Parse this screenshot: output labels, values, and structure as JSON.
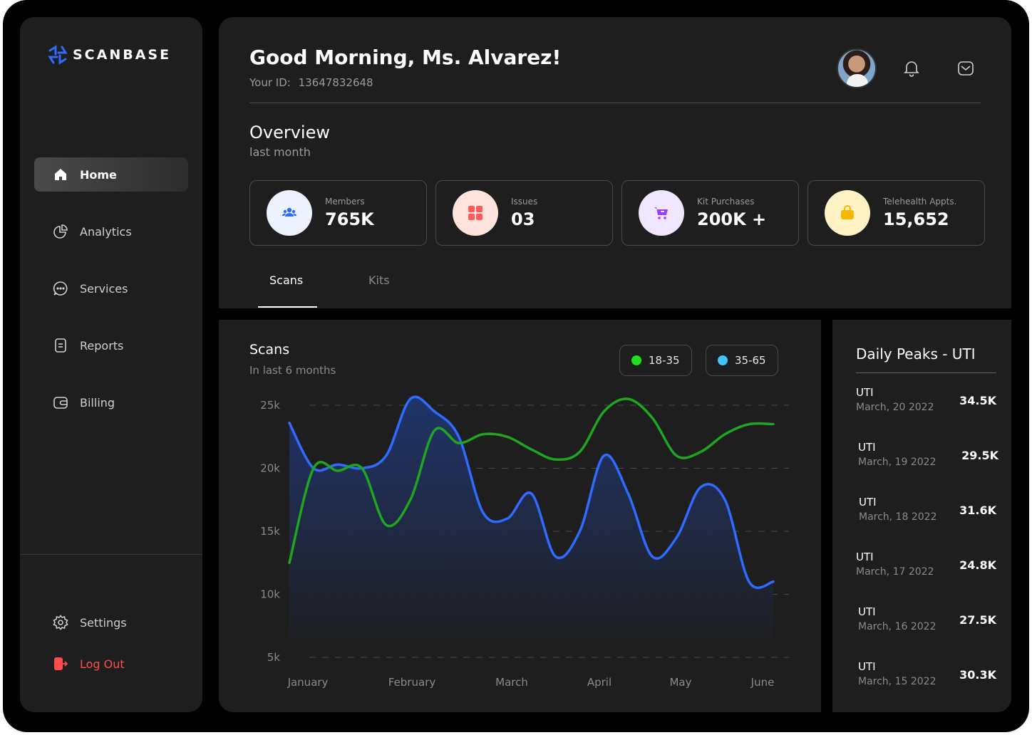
{
  "brand": {
    "name": "SCANBASE",
    "logo_color": "#2f6bff"
  },
  "sidebar": {
    "items": [
      {
        "label": "Home",
        "icon": "home-icon",
        "active": true
      },
      {
        "label": "Analytics",
        "icon": "pie-chart-icon"
      },
      {
        "label": "Services",
        "icon": "chat-bubble-icon"
      },
      {
        "label": "Reports",
        "icon": "document-icon"
      },
      {
        "label": "Billing",
        "icon": "wallet-icon"
      }
    ],
    "settings_label": "Settings",
    "logout_label": "Log Out",
    "logout_color": "#ff4d4d"
  },
  "header": {
    "greeting": "Good Morning, Ms. Alvarez!",
    "id_label": "Your ID:",
    "id_value": "13647832648",
    "icons": [
      "avatar",
      "bell-icon",
      "mail-icon"
    ]
  },
  "overview": {
    "title": "Overview",
    "subtitle": "last month",
    "stats": [
      {
        "label": "Members",
        "value": "765K",
        "icon": "users-icon",
        "bg": "#eef2ff",
        "fg": "#2f6bff"
      },
      {
        "label": "Issues",
        "value": "03",
        "icon": "grid-icon",
        "bg": "#ffe4de",
        "fg": "#ff5a5a"
      },
      {
        "label": "Kit Purchases",
        "value": "200K +",
        "icon": "cart-icon",
        "bg": "#f1e6ff",
        "fg": "#9b3dff"
      },
      {
        "label": "Telehealth Appts.",
        "value": "15,652",
        "icon": "bag-icon",
        "bg": "#fff2c4",
        "fg": "#f5b800"
      }
    ]
  },
  "tabs": [
    {
      "label": "Scans",
      "active": true
    },
    {
      "label": "Kits",
      "active": false
    }
  ],
  "chart": {
    "title": "Scans",
    "subtitle": "In last 6 months",
    "legend": [
      {
        "label": "18-35",
        "color": "#1fe01f"
      },
      {
        "label": "35-65",
        "color": "#3fc4ff"
      }
    ]
  },
  "chart_data": {
    "type": "line",
    "categories": [
      "January",
      "February",
      "March",
      "April",
      "May",
      "June"
    ],
    "y_tick_labels": [
      "25k",
      "20k",
      "15k",
      "10k",
      "5k"
    ],
    "ylim": [
      5000,
      25000
    ],
    "grid": true,
    "legend_position": "top-right",
    "x": [
      0,
      0.25,
      0.5,
      0.75,
      1,
      1.25,
      1.5,
      1.75,
      2,
      2.25,
      2.5,
      2.75,
      3,
      3.25,
      3.5,
      3.75,
      4,
      4.25,
      4.5,
      4.75,
      5
    ],
    "series": [
      {
        "name": "18-35",
        "color": "#1fa51f",
        "values": [
          12500,
          20000,
          19800,
          20000,
          15500,
          17500,
          23000,
          22000,
          22700,
          22500,
          21500,
          20700,
          21300,
          24500,
          25500,
          24000,
          21000,
          21300,
          22700,
          23500,
          23500
        ]
      },
      {
        "name": "35-65",
        "color": "#2f6bff",
        "area": true,
        "values": [
          23600,
          20000,
          20300,
          20000,
          21000,
          25500,
          24500,
          22500,
          16500,
          16000,
          18000,
          13000,
          15000,
          21000,
          18000,
          13000,
          14500,
          18500,
          17500,
          11000,
          11000
        ]
      }
    ]
  },
  "peaks": {
    "title": "Daily Peaks - UTI",
    "rows": [
      {
        "name": "UTI",
        "date": "March, 20 2022",
        "value": "34.5K"
      },
      {
        "name": "UTI",
        "date": "March, 19 2022",
        "value": "29.5K"
      },
      {
        "name": "UTI",
        "date": "March, 18 2022",
        "value": "31.6K"
      },
      {
        "name": "UTI",
        "date": "March, 17 2022",
        "value": "24.8K"
      },
      {
        "name": "UTI",
        "date": "March, 16 2022",
        "value": "27.5K"
      },
      {
        "name": "UTI",
        "date": "March, 15 2022",
        "value": "30.3K"
      }
    ]
  }
}
